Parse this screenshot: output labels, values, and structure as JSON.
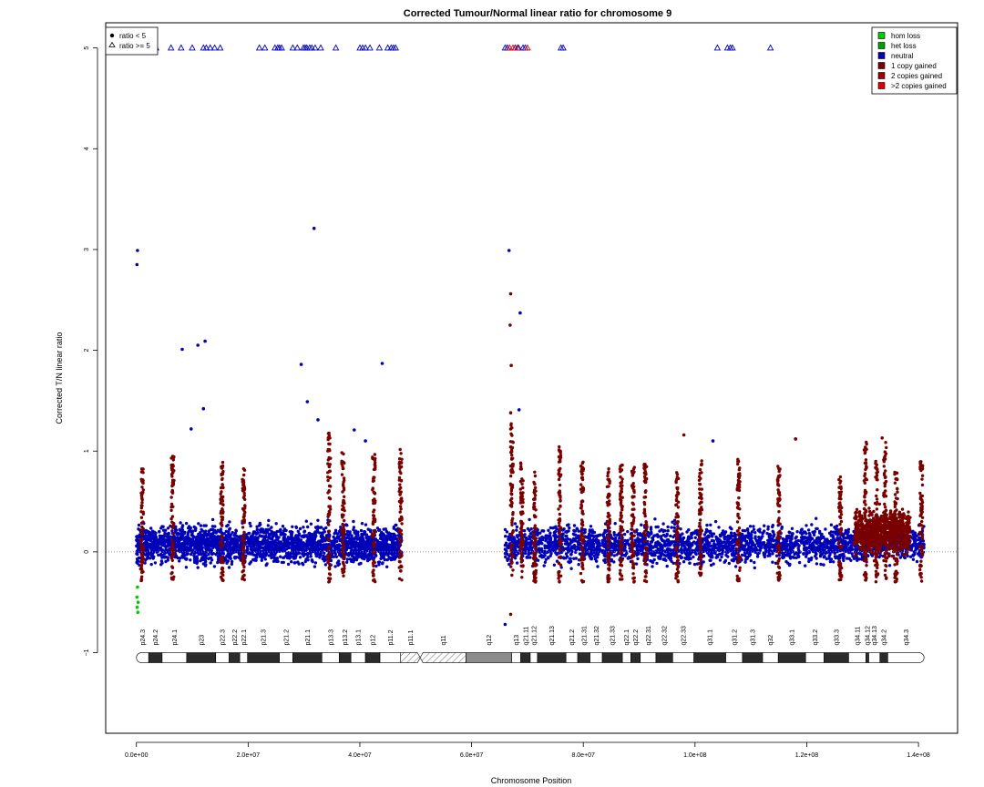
{
  "chart_data": {
    "type": "scatter",
    "title": "Corrected Tumour/Normal linear ratio for chromosome  9",
    "xlabel": "Chromosome Position",
    "ylabel": "Corrected T/N linear ratio",
    "xlim": [
      -5500000,
      147000000
    ],
    "ylim": [
      -1.8,
      5.25
    ],
    "x_ticks": [
      0,
      20000000,
      40000000,
      60000000,
      80000000,
      100000000,
      120000000,
      140000000
    ],
    "x_tick_labels": [
      "0.0e+00",
      "2.0e+07",
      "4.0e+07",
      "6.0e+07",
      "8.0e+07",
      "1.0e+08",
      "1.2e+08",
      "1.4e+08"
    ],
    "y_ticks": [
      -1,
      0,
      1,
      2,
      3,
      4,
      5
    ],
    "y_tick_labels": [
      "−1",
      "0",
      "1",
      "2",
      "3",
      "4",
      "5"
    ],
    "reference_line": {
      "y": 0,
      "style": "dotted"
    },
    "shape_legend": {
      "placement": "top-left",
      "items": [
        {
          "symbol": "filled-circle",
          "label": "ratio < 5"
        },
        {
          "symbol": "open-triangle",
          "label": "ratio >= 5"
        }
      ]
    },
    "legend": {
      "placement": "top-right",
      "items": [
        {
          "label": "hom loss",
          "color": "#00cc00"
        },
        {
          "label": "het loss",
          "color": "#00a000"
        },
        {
          "label": "neutral",
          "color": "#0000b8"
        },
        {
          "label": "1 copy gained",
          "color": "#7a0000"
        },
        {
          "label": "2 copies gained",
          "color": "#a00000"
        },
        {
          "label": ">2 copies gained",
          "color": "#e00000"
        }
      ]
    },
    "colors": {
      "hom_loss": "#00cc00",
      "het_loss": "#00a000",
      "neutral": "#0000b8",
      "gain1": "#7a0000",
      "gain2": "#a00000",
      "gain3": "#e00000"
    },
    "point_density": {
      "description": "dense neutral points in two arms",
      "arms": [
        {
          "x_range": [
            0,
            47500000
          ],
          "y_range": [
            -0.45,
            0.6
          ]
        },
        {
          "x_range": [
            66000000,
            141000000
          ],
          "y_range": [
            -0.45,
            0.6
          ]
        }
      ]
    },
    "gain_columns": [
      {
        "x": 1000000,
        "ymax": 0.85
      },
      {
        "x": 6500000,
        "ymax": 0.95
      },
      {
        "x": 15300000,
        "ymax": 0.9
      },
      {
        "x": 19200000,
        "ymax": 0.85
      },
      {
        "x": 34500000,
        "ymax": 1.2
      },
      {
        "x": 37000000,
        "ymax": 1.0
      },
      {
        "x": 42500000,
        "ymax": 1.05
      },
      {
        "x": 47300000,
        "ymax": 1.07
      },
      {
        "x": 67200000,
        "ymax": 1.3
      },
      {
        "x": 69000000,
        "ymax": 0.9
      },
      {
        "x": 71300000,
        "ymax": 0.8
      },
      {
        "x": 75800000,
        "ymax": 1.05
      },
      {
        "x": 79800000,
        "ymax": 0.9
      },
      {
        "x": 84500000,
        "ymax": 0.85
      },
      {
        "x": 86800000,
        "ymax": 0.9
      },
      {
        "x": 88900000,
        "ymax": 0.85
      },
      {
        "x": 91100000,
        "ymax": 0.9
      },
      {
        "x": 96800000,
        "ymax": 0.8
      },
      {
        "x": 101000000,
        "ymax": 0.95
      },
      {
        "x": 107800000,
        "ymax": 0.95
      },
      {
        "x": 115000000,
        "ymax": 0.9
      },
      {
        "x": 126000000,
        "ymax": 0.75
      },
      {
        "x": 130500000,
        "ymax": 1.1
      },
      {
        "x": 132500000,
        "ymax": 0.9
      },
      {
        "x": 134000000,
        "ymax": 1.1
      },
      {
        "x": 136000000,
        "ymax": 0.8
      },
      {
        "x": 140500000,
        "ymax": 0.9
      }
    ],
    "wide_gain_band": {
      "x_range": [
        128500000,
        138500000
      ],
      "ymax": 0.95
    },
    "het_loss_points": [
      {
        "x": 200000,
        "y": -0.35
      },
      {
        "x": 100000,
        "y": -0.45
      },
      {
        "x": 300000,
        "y": -0.5
      },
      {
        "x": 150000,
        "y": -0.55
      },
      {
        "x": 250000,
        "y": -0.6
      }
    ],
    "outliers_neutral": [
      {
        "x": 200000,
        "y": 2.99
      },
      {
        "x": 100000,
        "y": 2.85
      },
      {
        "x": 8200000,
        "y": 2.01
      },
      {
        "x": 11000000,
        "y": 2.05
      },
      {
        "x": 12300000,
        "y": 2.09
      },
      {
        "x": 12000000,
        "y": 1.42
      },
      {
        "x": 9800000,
        "y": 1.22
      },
      {
        "x": 31800000,
        "y": 3.21
      },
      {
        "x": 29500000,
        "y": 1.86
      },
      {
        "x": 30600000,
        "y": 1.49
      },
      {
        "x": 32500000,
        "y": 1.31
      },
      {
        "x": 39000000,
        "y": 1.21
      },
      {
        "x": 44000000,
        "y": 1.87
      },
      {
        "x": 41000000,
        "y": 1.1
      },
      {
        "x": 66700000,
        "y": 2.99
      },
      {
        "x": 68700000,
        "y": 2.37
      },
      {
        "x": 68500000,
        "y": 1.41
      },
      {
        "x": 66000000,
        "y": -0.72
      },
      {
        "x": 103200000,
        "y": 1.1
      },
      {
        "x": 118000000,
        "y": 1.12
      }
    ],
    "outliers_gain": [
      {
        "x": 67000000,
        "y": 2.56
      },
      {
        "x": 66900000,
        "y": 2.25
      },
      {
        "x": 67100000,
        "y": 1.85
      },
      {
        "x": 67000000,
        "y": 1.38
      },
      {
        "x": 67200000,
        "y": 1.23
      },
      {
        "x": 67000000,
        "y": -0.62
      },
      {
        "x": 98000000,
        "y": 1.16
      },
      {
        "x": 118000000,
        "y": 1.12
      },
      {
        "x": 133500000,
        "y": 1.13
      }
    ],
    "capped_points_neutral_x": [
      200000,
      3500000,
      6200000,
      8000000,
      10000000,
      12000000,
      12500000,
      13200000,
      14000000,
      15000000,
      22000000,
      23000000,
      24800000,
      25300000,
      25600000,
      26000000,
      28000000,
      28800000,
      29900000,
      30200000,
      30500000,
      31000000,
      31400000,
      32000000,
      33000000,
      35700000,
      40000000,
      40500000,
      41000000,
      41800000,
      43500000,
      45000000,
      45600000,
      46000000,
      46400000,
      66000000,
      66400000,
      67800000,
      68400000,
      69200000,
      69600000,
      76000000,
      76400000,
      104000000,
      105800000,
      106300000,
      106700000,
      113500000
    ],
    "capped_points_gain_x": [
      66800000,
      67400000,
      68200000,
      70000000
    ],
    "cap_value": 5,
    "ideogram": {
      "y": -1.05,
      "x_range": [
        0,
        141000000
      ],
      "centromere_x": 50800000,
      "bands": [
        {
          "name": "p24.3",
          "start": 0,
          "end": 2200000,
          "stain": "white"
        },
        {
          "name": "p24.2",
          "start": 2200000,
          "end": 4600000,
          "stain": "dark"
        },
        {
          "name": "p24.1",
          "start": 4600000,
          "end": 9000000,
          "stain": "white"
        },
        {
          "name": "p23",
          "start": 9000000,
          "end": 14200000,
          "stain": "dark"
        },
        {
          "name": "p22.3",
          "start": 14200000,
          "end": 16600000,
          "stain": "white"
        },
        {
          "name": "p22.2",
          "start": 16600000,
          "end": 18500000,
          "stain": "dark"
        },
        {
          "name": "p22.1",
          "start": 18500000,
          "end": 19900000,
          "stain": "white"
        },
        {
          "name": "p21.3",
          "start": 19900000,
          "end": 25600000,
          "stain": "dark"
        },
        {
          "name": "p21.2",
          "start": 25600000,
          "end": 28000000,
          "stain": "white"
        },
        {
          "name": "p21.1",
          "start": 28000000,
          "end": 33200000,
          "stain": "dark"
        },
        {
          "name": "p13.3",
          "start": 33200000,
          "end": 36300000,
          "stain": "white"
        },
        {
          "name": "p13.2",
          "start": 36300000,
          "end": 38400000,
          "stain": "dark"
        },
        {
          "name": "p13.1",
          "start": 38400000,
          "end": 41000000,
          "stain": "white"
        },
        {
          "name": "p12",
          "start": 41000000,
          "end": 43600000,
          "stain": "dark"
        },
        {
          "name": "p11.2",
          "start": 43600000,
          "end": 47300000,
          "stain": "white"
        },
        {
          "name": "p11.1",
          "start": 47300000,
          "end": 50800000,
          "stain": "hatched"
        },
        {
          "name": "q11",
          "start": 50800000,
          "end": 59000000,
          "stain": "hatched"
        },
        {
          "name": "q12",
          "start": 59000000,
          "end": 67200000,
          "stain": "gray"
        },
        {
          "name": "q13",
          "start": 67200000,
          "end": 68800000,
          "stain": "white"
        },
        {
          "name": "q21.11",
          "start": 68800000,
          "end": 70500000,
          "stain": "dark"
        },
        {
          "name": "q21.12",
          "start": 70500000,
          "end": 71800000,
          "stain": "white"
        },
        {
          "name": "q21.13",
          "start": 71800000,
          "end": 76900000,
          "stain": "dark"
        },
        {
          "name": "q21.2",
          "start": 76900000,
          "end": 79000000,
          "stain": "white"
        },
        {
          "name": "q21.31",
          "start": 79000000,
          "end": 81200000,
          "stain": "dark"
        },
        {
          "name": "q21.32",
          "start": 81200000,
          "end": 83400000,
          "stain": "white"
        },
        {
          "name": "q21.33",
          "start": 83400000,
          "end": 87000000,
          "stain": "dark"
        },
        {
          "name": "q22.1",
          "start": 87000000,
          "end": 88500000,
          "stain": "white"
        },
        {
          "name": "q22.2",
          "start": 88500000,
          "end": 90200000,
          "stain": "dark"
        },
        {
          "name": "q22.31",
          "start": 90200000,
          "end": 93000000,
          "stain": "white"
        },
        {
          "name": "q22.32",
          "start": 93000000,
          "end": 96000000,
          "stain": "dark"
        },
        {
          "name": "q22.33",
          "start": 96000000,
          "end": 99800000,
          "stain": "white"
        },
        {
          "name": "q31.1",
          "start": 99800000,
          "end": 105500000,
          "stain": "dark"
        },
        {
          "name": "q31.2",
          "start": 105500000,
          "end": 108500000,
          "stain": "white"
        },
        {
          "name": "q31.3",
          "start": 108500000,
          "end": 112100000,
          "stain": "dark"
        },
        {
          "name": "q32",
          "start": 112100000,
          "end": 114900000,
          "stain": "white"
        },
        {
          "name": "q33.1",
          "start": 114900000,
          "end": 119800000,
          "stain": "dark"
        },
        {
          "name": "q33.2",
          "start": 119800000,
          "end": 123100000,
          "stain": "white"
        },
        {
          "name": "q33.3",
          "start": 123100000,
          "end": 127500000,
          "stain": "dark"
        },
        {
          "name": "q34.11",
          "start": 127500000,
          "end": 130600000,
          "stain": "white"
        },
        {
          "name": "q34.12",
          "start": 130600000,
          "end": 131100000,
          "stain": "dark"
        },
        {
          "name": "q34.13",
          "start": 131100000,
          "end": 133100000,
          "stain": "white"
        },
        {
          "name": "q34.2",
          "start": 133100000,
          "end": 134500000,
          "stain": "dark"
        },
        {
          "name": "q34.3",
          "start": 134500000,
          "end": 141000000,
          "stain": "white"
        }
      ]
    }
  }
}
